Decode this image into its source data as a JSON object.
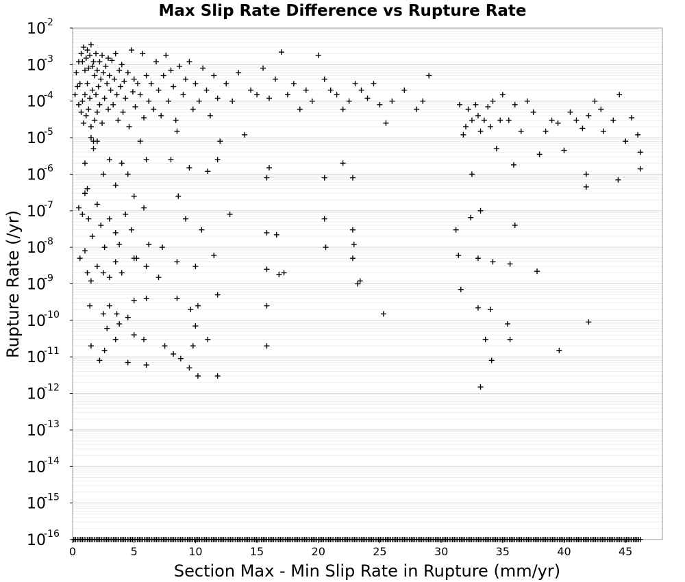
{
  "chart_data": {
    "type": "scatter",
    "title": "Max Slip Rate Difference vs Rupture Rate",
    "xlabel": "Section Max - Min Slip Rate in Rupture (mm/yr)",
    "ylabel": "Rupture Rate (/yr)",
    "x_ticks": [
      "0",
      "5",
      "10",
      "15",
      "20",
      "25",
      "30",
      "35",
      "40",
      "45"
    ],
    "y_ticks": [
      {
        "base": "10",
        "exp": "-2",
        "value": 0.01
      },
      {
        "base": "10",
        "exp": "-3",
        "value": 0.001
      },
      {
        "base": "10",
        "exp": "-4",
        "value": 0.0001
      },
      {
        "base": "10",
        "exp": "-5",
        "value": 1e-05
      },
      {
        "base": "10",
        "exp": "-6",
        "value": 1e-06
      },
      {
        "base": "10",
        "exp": "-7",
        "value": 1e-07
      },
      {
        "base": "10",
        "exp": "-8",
        "value": 1e-08
      },
      {
        "base": "10",
        "exp": "-9",
        "value": 1e-09
      },
      {
        "base": "10",
        "exp": "-10",
        "value": 1e-10
      },
      {
        "base": "10",
        "exp": "-11",
        "value": 1e-11
      },
      {
        "base": "10",
        "exp": "-12",
        "value": 1e-12
      },
      {
        "base": "10",
        "exp": "-13",
        "value": 1e-13
      },
      {
        "base": "10",
        "exp": "-14",
        "value": 1e-14
      },
      {
        "base": "10",
        "exp": "-15",
        "value": 1e-15
      },
      {
        "base": "10",
        "exp": "-16",
        "value": 1e-16
      }
    ],
    "xlim": [
      0,
      48
    ],
    "ylim": [
      1e-16,
      0.01
    ],
    "y_scale": "log",
    "grid": true,
    "marker": "plus",
    "marker_color": "#000000",
    "points": [
      [
        0.2,
        0.00015
      ],
      [
        0.3,
        0.0006
      ],
      [
        0.4,
        0.00025
      ],
      [
        0.5,
        0.0012
      ],
      [
        0.5,
        8e-05
      ],
      [
        0.6,
        0.0003
      ],
      [
        0.7,
        0.002
      ],
      [
        0.7,
        5e-05
      ],
      [
        0.8,
        0.0012
      ],
      [
        0.8,
        0.0001
      ],
      [
        0.9,
        0.003
      ],
      [
        0.9,
        2.5e-05
      ],
      [
        1.0,
        0.0007
      ],
      [
        1.0,
        0.00015
      ],
      [
        1.1,
        0.0015
      ],
      [
        1.1,
        4e-05
      ],
      [
        1.2,
        0.0025
      ],
      [
        1.2,
        0.0003
      ],
      [
        1.3,
        0.0008
      ],
      [
        1.3,
        6e-05
      ],
      [
        1.4,
        0.0018
      ],
      [
        1.4,
        0.00012
      ],
      [
        1.5,
        0.0035
      ],
      [
        1.5,
        2e-05
      ],
      [
        1.6,
        0.0009
      ],
      [
        1.6,
        0.0002
      ],
      [
        1.7,
        0.0012
      ],
      [
        1.7,
        8e-06
      ],
      [
        1.8,
        0.0005
      ],
      [
        1.8,
        3e-05
      ],
      [
        1.9,
        0.002
      ],
      [
        1.9,
        0.00015
      ],
      [
        2.0,
        0.0007
      ],
      [
        2.0,
        5e-05
      ],
      [
        2.1,
        0.00025
      ],
      [
        2.2,
        0.0012
      ],
      [
        2.2,
        8e-05
      ],
      [
        2.3,
        0.0004
      ],
      [
        2.4,
        0.0018
      ],
      [
        2.4,
        2.5e-05
      ],
      [
        2.5,
        0.0006
      ],
      [
        2.6,
        0.00012
      ],
      [
        2.7,
        0.0009
      ],
      [
        2.8,
        0.0003
      ],
      [
        2.9,
        0.0015
      ],
      [
        2.9,
        6e-05
      ],
      [
        3.0,
        0.0005
      ],
      [
        3.1,
        0.0002
      ],
      [
        3.2,
        0.0013
      ],
      [
        3.3,
        8e-05
      ],
      [
        3.4,
        0.0004
      ],
      [
        3.5,
        0.002
      ],
      [
        3.6,
        0.00015
      ],
      [
        3.7,
        3e-05
      ],
      [
        3.8,
        0.0007
      ],
      [
        3.9,
        0.00025
      ],
      [
        4.0,
        0.001
      ],
      [
        4.1,
        5e-05
      ],
      [
        4.2,
        0.00035
      ],
      [
        4.3,
        0.00012
      ],
      [
        4.5,
        0.0006
      ],
      [
        4.6,
        2e-05
      ],
      [
        4.8,
        0.0025
      ],
      [
        4.9,
        0.00018
      ],
      [
        5.0,
        0.0004
      ],
      [
        5.1,
        7e-05
      ],
      [
        5.3,
        0.0003
      ],
      [
        5.5,
        0.00015
      ],
      [
        5.7,
        0.002
      ],
      [
        5.8,
        3.5e-05
      ],
      [
        6.0,
        0.0005
      ],
      [
        6.2,
        0.0001
      ],
      [
        6.4,
        0.0003
      ],
      [
        6.6,
        6e-05
      ],
      [
        6.8,
        0.0012
      ],
      [
        7.0,
        0.0002
      ],
      [
        7.2,
        4e-05
      ],
      [
        7.4,
        0.0005
      ],
      [
        7.6,
        0.0018
      ],
      [
        7.8,
        0.0001
      ],
      [
        8.0,
        0.0007
      ],
      [
        8.2,
        0.00025
      ],
      [
        8.4,
        3e-05
      ],
      [
        8.7,
        0.0009
      ],
      [
        9.0,
        0.00015
      ],
      [
        9.2,
        0.0004
      ],
      [
        9.5,
        0.0012
      ],
      [
        9.8,
        6e-05
      ],
      [
        10.0,
        0.0003
      ],
      [
        10.3,
        0.0001
      ],
      [
        10.6,
        0.0008
      ],
      [
        10.9,
        0.0002
      ],
      [
        11.2,
        4e-05
      ],
      [
        11.5,
        0.0005
      ],
      [
        11.8,
        0.00012
      ],
      [
        12.0,
        8e-06
      ],
      [
        12.5,
        0.0003
      ],
      [
        13.0,
        0.0001
      ],
      [
        13.5,
        0.0006
      ],
      [
        14.0,
        1.2e-05
      ],
      [
        14.5,
        0.0002
      ],
      [
        15.0,
        0.00015
      ],
      [
        15.5,
        0.0008
      ],
      [
        16.0,
        0.00012
      ],
      [
        16.5,
        0.0004
      ],
      [
        17.0,
        0.0022
      ],
      [
        17.5,
        0.00015
      ],
      [
        18.0,
        0.0003
      ],
      [
        18.5,
        6e-05
      ],
      [
        19.0,
        0.0002
      ],
      [
        19.5,
        0.0001
      ],
      [
        20.0,
        0.0018
      ],
      [
        20.5,
        0.0004
      ],
      [
        21.0,
        0.0002
      ],
      [
        21.5,
        0.00015
      ],
      [
        22.0,
        6e-05
      ],
      [
        22.5,
        0.0001
      ],
      [
        23.0,
        0.0003
      ],
      [
        23.5,
        0.0002
      ],
      [
        24.0,
        0.00012
      ],
      [
        24.5,
        0.0003
      ],
      [
        25.0,
        8e-05
      ],
      [
        25.5,
        2.5e-05
      ],
      [
        26.0,
        0.0001
      ],
      [
        27.0,
        0.0002
      ],
      [
        28.0,
        6e-05
      ],
      [
        28.5,
        0.0001
      ],
      [
        29.0,
        0.0005
      ],
      [
        1.0,
        2e-06
      ],
      [
        1.2,
        4e-07
      ],
      [
        1.5,
        1e-05
      ],
      [
        1.7,
        5e-06
      ],
      [
        2.0,
        8e-06
      ],
      [
        2.5,
        1e-06
      ],
      [
        3.0,
        2.5e-06
      ],
      [
        3.5,
        5e-07
      ],
      [
        4.0,
        2e-06
      ],
      [
        4.5,
        1e-06
      ],
      [
        5.0,
        2.5e-07
      ],
      [
        5.5,
        8e-06
      ],
      [
        6.0,
        2.5e-06
      ],
      [
        8.0,
        2.5e-06
      ],
      [
        8.5,
        1.5e-05
      ],
      [
        9.5,
        1.5e-06
      ],
      [
        11.0,
        1.2e-06
      ],
      [
        11.8,
        2.5e-06
      ],
      [
        15.8,
        8e-07
      ],
      [
        16.0,
        1.5e-06
      ],
      [
        20.5,
        8e-07
      ],
      [
        22.0,
        2e-06
      ],
      [
        22.8,
        8e-07
      ],
      [
        0.5,
        1.2e-07
      ],
      [
        0.8,
        8e-08
      ],
      [
        1.0,
        3e-07
      ],
      [
        1.3,
        6e-08
      ],
      [
        1.6,
        2e-08
      ],
      [
        2.0,
        1.5e-07
      ],
      [
        2.3,
        4e-08
      ],
      [
        2.6,
        1e-08
      ],
      [
        3.0,
        6e-08
      ],
      [
        3.5,
        2.5e-08
      ],
      [
        3.8,
        1.2e-08
      ],
      [
        4.3,
        8e-08
      ],
      [
        4.8,
        3e-08
      ],
      [
        5.2,
        5e-09
      ],
      [
        5.8,
        1.2e-07
      ],
      [
        6.2,
        1.2e-08
      ],
      [
        7.3,
        1e-08
      ],
      [
        8.6,
        2.5e-07
      ],
      [
        9.2,
        6e-08
      ],
      [
        10.5,
        3e-08
      ],
      [
        11.5,
        6e-09
      ],
      [
        12.8,
        8e-08
      ],
      [
        15.8,
        2.5e-08
      ],
      [
        16.6,
        2.2e-08
      ],
      [
        20.5,
        6e-08
      ],
      [
        20.6,
        1e-08
      ],
      [
        22.8,
        3e-08
      ],
      [
        22.9,
        1.2e-08
      ],
      [
        22.8,
        5e-09
      ],
      [
        0.6,
        5e-09
      ],
      [
        1.0,
        8e-09
      ],
      [
        1.2,
        2e-09
      ],
      [
        1.5,
        1.2e-09
      ],
      [
        2.0,
        3e-09
      ],
      [
        2.5,
        2e-09
      ],
      [
        3.0,
        1.5e-09
      ],
      [
        3.5,
        4e-09
      ],
      [
        4.0,
        2e-09
      ],
      [
        5.0,
        5e-09
      ],
      [
        6.0,
        3e-09
      ],
      [
        7.0,
        1.5e-09
      ],
      [
        8.5,
        4e-09
      ],
      [
        10.0,
        3e-09
      ],
      [
        15.8,
        2.5e-09
      ],
      [
        16.8,
        1.8e-09
      ],
      [
        17.2,
        2e-09
      ],
      [
        23.2,
        1e-09
      ],
      [
        23.4,
        1.2e-09
      ],
      [
        1.4,
        2.5e-10
      ],
      [
        2.5,
        1.5e-10
      ],
      [
        2.8,
        6e-11
      ],
      [
        3.0,
        2.5e-10
      ],
      [
        3.6,
        1.5e-10
      ],
      [
        3.8,
        8e-11
      ],
      [
        4.5,
        1.2e-10
      ],
      [
        5.0,
        3.5e-10
      ],
      [
        6.0,
        4e-10
      ],
      [
        8.5,
        4e-10
      ],
      [
        9.6,
        2e-10
      ],
      [
        10.0,
        7e-11
      ],
      [
        10.2,
        2.5e-10
      ],
      [
        11.8,
        5e-10
      ],
      [
        15.8,
        2.5e-10
      ],
      [
        25.3,
        1.5e-10
      ],
      [
        1.5,
        2e-11
      ],
      [
        2.2,
        8e-12
      ],
      [
        2.6,
        1.5e-11
      ],
      [
        3.5,
        3e-11
      ],
      [
        4.5,
        7e-12
      ],
      [
        5.0,
        4e-11
      ],
      [
        5.8,
        3e-11
      ],
      [
        6.0,
        6e-12
      ],
      [
        7.5,
        2e-11
      ],
      [
        8.2,
        1.2e-11
      ],
      [
        8.8,
        9e-12
      ],
      [
        9.5,
        5e-12
      ],
      [
        9.8,
        2e-11
      ],
      [
        10.2,
        3e-12
      ],
      [
        11.0,
        3e-11
      ],
      [
        11.8,
        3e-12
      ],
      [
        15.8,
        2e-11
      ],
      [
        31.5,
        8e-05
      ],
      [
        31.8,
        1.2e-05
      ],
      [
        32.0,
        2e-05
      ],
      [
        32.2,
        6e-05
      ],
      [
        32.5,
        3e-05
      ],
      [
        32.8,
        8e-05
      ],
      [
        33.0,
        4e-05
      ],
      [
        33.2,
        1.5e-05
      ],
      [
        33.5,
        3e-05
      ],
      [
        33.8,
        7e-05
      ],
      [
        34.0,
        2e-05
      ],
      [
        34.2,
        0.0001
      ],
      [
        34.5,
        5e-06
      ],
      [
        34.8,
        3e-05
      ],
      [
        35.0,
        0.00015
      ],
      [
        35.5,
        3e-05
      ],
      [
        36.0,
        8e-05
      ],
      [
        36.5,
        1.5e-05
      ],
      [
        37.0,
        0.0001
      ],
      [
        37.5,
        5e-05
      ],
      [
        38.0,
        3.5e-06
      ],
      [
        38.5,
        1.5e-05
      ],
      [
        39.0,
        3e-05
      ],
      [
        39.5,
        2.5e-05
      ],
      [
        40.0,
        4.5e-06
      ],
      [
        40.5,
        5e-05
      ],
      [
        41.0,
        3e-05
      ],
      [
        41.5,
        1.8e-05
      ],
      [
        42.0,
        4e-05
      ],
      [
        42.5,
        0.0001
      ],
      [
        43.0,
        6e-05
      ],
      [
        43.2,
        1.5e-05
      ],
      [
        44.0,
        3e-05
      ],
      [
        44.5,
        0.00015
      ],
      [
        45.0,
        8e-06
      ],
      [
        45.5,
        3.5e-05
      ],
      [
        46.0,
        1.2e-05
      ],
      [
        46.2,
        4e-06
      ],
      [
        32.5,
        1e-06
      ],
      [
        35.9,
        1.8e-06
      ],
      [
        41.8,
        1e-06
      ],
      [
        41.8,
        4.5e-07
      ],
      [
        44.4,
        7e-07
      ],
      [
        46.2,
        1.4e-06
      ],
      [
        31.2,
        3e-08
      ],
      [
        31.4,
        6e-09
      ],
      [
        32.4,
        6.5e-08
      ],
      [
        33.2,
        1e-07
      ],
      [
        33.0,
        5e-09
      ],
      [
        34.2,
        4e-09
      ],
      [
        35.6,
        3.5e-09
      ],
      [
        36.0,
        4e-08
      ],
      [
        37.8,
        2.2e-09
      ],
      [
        31.6,
        7e-10
      ],
      [
        33.0,
        2.2e-10
      ],
      [
        34.0,
        2e-10
      ],
      [
        35.4,
        8e-11
      ],
      [
        35.6,
        3e-11
      ],
      [
        33.6,
        3e-11
      ],
      [
        34.1,
        8e-12
      ],
      [
        39.6,
        1.5e-11
      ],
      [
        42.0,
        9e-11
      ],
      [
        33.2,
        1.5e-12
      ]
    ],
    "baseline_points_value": 1e-16,
    "baseline_points_x_range": [
      0.1,
      46.2
    ],
    "baseline_points_count": 330
  }
}
